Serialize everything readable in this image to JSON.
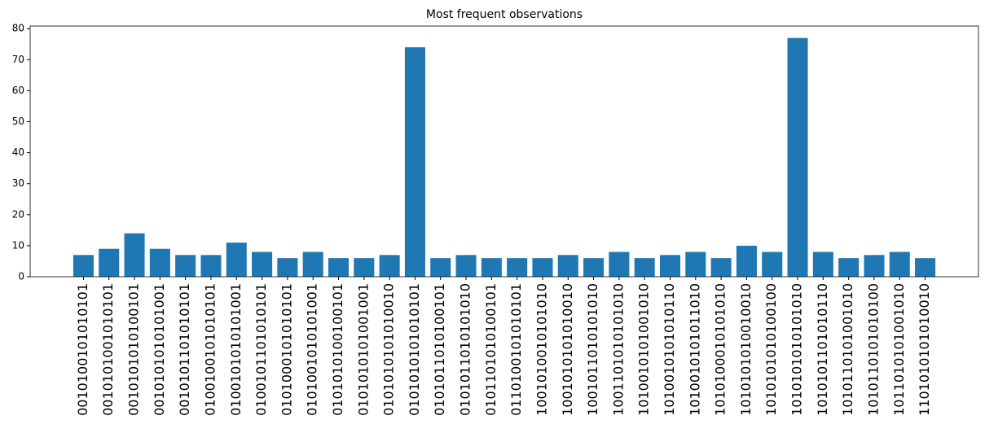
{
  "chart_data": {
    "type": "bar",
    "title": "Most frequent observations",
    "categories": [
      "0010100101010101",
      "0010101001010101",
      "0010101010100101",
      "0010101010101001",
      "0010101101010101",
      "0100100101010101",
      "0100101010101001",
      "0100101101010101",
      "0101000101010101",
      "0101001010101001",
      "0101010100100101",
      "0101010101001001",
      "0101010101010010",
      "0101010101010101",
      "0101011010100101",
      "0101011010101010",
      "0101101010100101",
      "0110100101010101",
      "1001010010101010",
      "1001010101010010",
      "1001011010101010",
      "1001101010101010",
      "1010010101001010",
      "1010010101010110",
      "1010010101011010",
      "1010100010101010",
      "1010101010010010",
      "1010101010100100",
      "1010101010101010",
      "1010101101010110",
      "1010110101001010",
      "1010110101010100",
      "1011010101001010",
      "1101010101010010"
    ],
    "values": [
      7,
      9,
      14,
      9,
      7,
      7,
      11,
      8,
      6,
      8,
      6,
      6,
      7,
      74,
      6,
      7,
      6,
      6,
      6,
      7,
      6,
      8,
      6,
      7,
      8,
      6,
      10,
      8,
      77,
      8,
      6,
      7,
      8,
      6
    ],
    "color": "#1f77b4",
    "ylim": [
      0,
      80.85
    ],
    "yticks": [
      0,
      10,
      20,
      30,
      40,
      50,
      60,
      70,
      80
    ],
    "grid": false
  }
}
